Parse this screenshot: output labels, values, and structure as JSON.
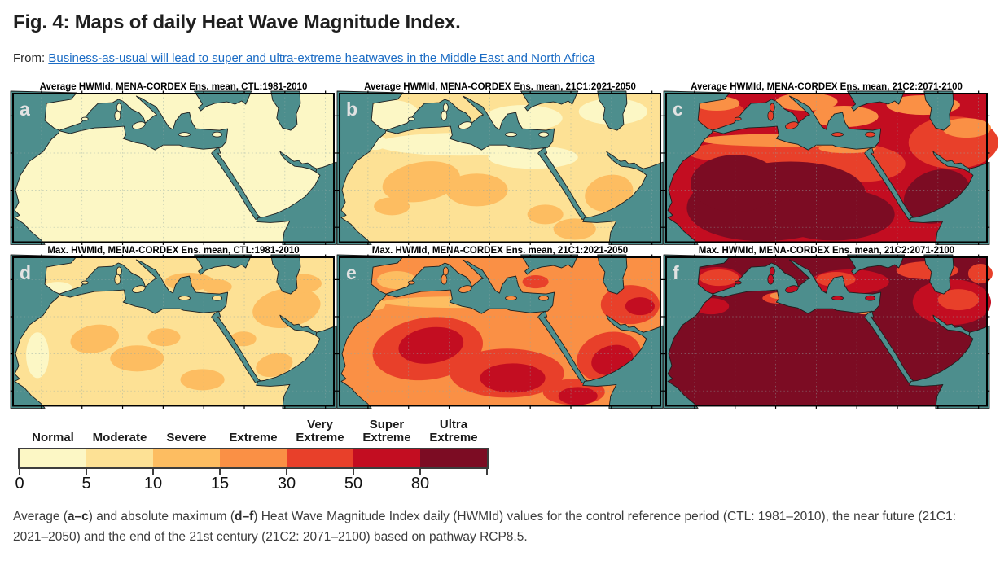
{
  "page": {
    "figure_title": "Fig. 4: Maps of daily Heat Wave Magnitude Index.",
    "from_label": "From: ",
    "source_link": "Business-as-usual will lead to super and ultra-extreme heatwaves in the Middle East and North Africa"
  },
  "colors": {
    "ocean": "#4d8e8d",
    "coastline": "#1e1e1e",
    "normal": "#fcf7c5",
    "moderate": "#fde195",
    "severe": "#fdbd61",
    "extreme": "#fa9045",
    "very_extreme": "#e8402a",
    "super_extreme": "#c30d21",
    "ultra_extreme": "#7c0c23",
    "link": "#1a6bc4",
    "panel_letter": "#e2e2e2"
  },
  "panels": [
    {
      "letter": "a",
      "title": "Average HWMId, MENA-CORDEX Ens. mean, CTL:1981-2010",
      "base": "normal",
      "islands": "normal",
      "patches": []
    },
    {
      "letter": "b",
      "title": "Average HWMId, MENA-CORDEX Ens. mean, 21C1:2021-2050",
      "base": "moderate",
      "islands": "normal",
      "patches": [
        [
          "normal",
          150,
          62,
          105,
          14,
          0
        ],
        [
          "normal",
          237,
          78,
          55,
          14,
          0
        ],
        [
          "normal",
          65,
          28,
          34,
          20,
          0
        ],
        [
          "normal",
          225,
          30,
          48,
          16,
          0
        ],
        [
          "normal",
          335,
          22,
          42,
          16,
          0
        ],
        [
          "normal",
          44,
          60,
          14,
          9,
          0
        ],
        [
          "severe",
          100,
          108,
          48,
          24,
          -10
        ],
        [
          "severe",
          168,
          118,
          38,
          20,
          0
        ],
        [
          "severe",
          330,
          122,
          30,
          22,
          -15
        ],
        [
          "severe",
          288,
          166,
          26,
          13,
          0
        ],
        [
          "severe",
          252,
          148,
          22,
          12,
          0
        ],
        [
          "severe",
          64,
          138,
          22,
          11,
          0
        ]
      ]
    },
    {
      "letter": "c",
      "title": "Average HWMId, MENA-CORDEX Ens. mean, 21C2:2071-2100",
      "base": "super_extreme",
      "islands": "very_extreme",
      "patches": [
        [
          "very_extreme",
          150,
          72,
          125,
          16,
          0
        ],
        [
          "very_extreme",
          243,
          86,
          50,
          22,
          0
        ],
        [
          "very_extreme",
          352,
          60,
          55,
          32,
          0
        ],
        [
          "very_extreme",
          65,
          28,
          34,
          20,
          0
        ],
        [
          "ultra_extreme",
          135,
          132,
          110,
          48,
          -5
        ],
        [
          "ultra_extreme",
          85,
          110,
          55,
          35,
          0
        ],
        [
          "ultra_extreme",
          205,
          148,
          75,
          32,
          0
        ],
        [
          "ultra_extreme",
          332,
          126,
          42,
          32,
          -20
        ],
        [
          "extreme",
          150,
          57,
          110,
          8,
          0
        ],
        [
          "extreme",
          222,
          67,
          35,
          6,
          0
        ],
        [
          "extreme",
          218,
          28,
          42,
          13,
          0
        ],
        [
          "extreme",
          172,
          10,
          38,
          11,
          0
        ],
        [
          "extreme",
          62,
          12,
          28,
          9,
          0
        ],
        [
          "extreme",
          315,
          14,
          45,
          12,
          0
        ],
        [
          "extreme",
          368,
          42,
          30,
          12,
          0
        ]
      ]
    },
    {
      "letter": "d",
      "title": "Max. HWMId, MENA-CORDEX Ens. mean, CTL:1981-2010",
      "base": "moderate",
      "islands": "moderate",
      "patches": [
        [
          "normal",
          30,
          120,
          14,
          28,
          0
        ],
        [
          "normal",
          55,
          38,
          18,
          8,
          0
        ],
        [
          "severe",
          100,
          100,
          30,
          17,
          -10
        ],
        [
          "severe",
          152,
          124,
          33,
          16,
          0
        ],
        [
          "severe",
          185,
          98,
          20,
          11,
          0
        ],
        [
          "severe",
          216,
          30,
          30,
          11,
          0
        ],
        [
          "severe",
          250,
          36,
          18,
          9,
          0
        ],
        [
          "severe",
          335,
          62,
          42,
          24,
          -10
        ],
        [
          "severe",
          352,
          32,
          26,
          12,
          0
        ],
        [
          "severe",
          320,
          132,
          23,
          14,
          -15
        ],
        [
          "severe",
          232,
          150,
          27,
          13,
          0
        ],
        [
          "severe",
          282,
          100,
          16,
          9,
          0
        ]
      ]
    },
    {
      "letter": "e",
      "title": "Max. HWMId, MENA-CORDEX Ens. mean, 21C1:2021-2050",
      "base": "extreme",
      "islands": "extreme",
      "patches": [
        [
          "severe",
          148,
          55,
          95,
          7,
          0
        ],
        [
          "severe",
          70,
          28,
          24,
          11,
          0
        ],
        [
          "severe",
          44,
          58,
          12,
          7,
          0
        ],
        [
          "very_extreme",
          108,
          112,
          68,
          38,
          -8
        ],
        [
          "very_extreme",
          205,
          142,
          70,
          30,
          0
        ],
        [
          "very_extreme",
          330,
          122,
          40,
          30,
          -15
        ],
        [
          "very_extreme",
          287,
          165,
          38,
          16,
          0
        ],
        [
          "very_extreme",
          356,
          58,
          36,
          24,
          0
        ],
        [
          "very_extreme",
          240,
          30,
          16,
          8,
          0
        ],
        [
          "super_extreme",
          112,
          108,
          40,
          22,
          -8
        ],
        [
          "super_extreme",
          212,
          148,
          40,
          18,
          0
        ],
        [
          "super_extreme",
          334,
          126,
          26,
          18,
          -15
        ],
        [
          "super_extreme",
          292,
          170,
          24,
          11,
          0
        ],
        [
          "super_extreme",
          368,
          60,
          18,
          11,
          0
        ]
      ]
    },
    {
      "letter": "f",
      "title": "Max. HWMId, MENA-CORDEX Ens. mean, 21C2:2071-2100",
      "base": "ultra_extreme",
      "islands": "super_extreme",
      "patches": [
        [
          "super_extreme",
          225,
          30,
          48,
          15,
          0
        ],
        [
          "super_extreme",
          350,
          55,
          48,
          28,
          0
        ],
        [
          "super_extreme",
          62,
          28,
          32,
          16,
          0
        ],
        [
          "super_extreme",
          55,
          60,
          22,
          10,
          0
        ],
        [
          "very_extreme",
          65,
          25,
          24,
          10,
          0
        ],
        [
          "very_extreme",
          208,
          27,
          24,
          9,
          0
        ],
        [
          "very_extreme",
          320,
          16,
          38,
          11,
          0
        ],
        [
          "very_extreme",
          358,
          52,
          25,
          13,
          0
        ],
        [
          "very_extreme",
          140,
          50,
          22,
          7,
          0
        ],
        [
          "very_extreme",
          385,
          20,
          15,
          12,
          0
        ],
        [
          "extreme",
          139,
          47,
          12,
          4,
          0
        ],
        [
          "extreme",
          243,
          66,
          10,
          4,
          0
        ]
      ]
    }
  ],
  "legend": {
    "categories": [
      {
        "label": "Normal",
        "color": "normal"
      },
      {
        "label": "Moderate",
        "color": "moderate"
      },
      {
        "label": "Severe",
        "color": "severe"
      },
      {
        "label": "Extreme",
        "color": "extreme"
      },
      {
        "label": "Very\nExtreme",
        "color": "very_extreme"
      },
      {
        "label": "Super\nExtreme",
        "color": "super_extreme"
      },
      {
        "label": "Ultra\nExtreme",
        "color": "ultra_extreme"
      }
    ],
    "tick_labels": [
      "0",
      "5",
      "10",
      "15",
      "30",
      "50",
      "80"
    ]
  },
  "caption": {
    "parts": [
      {
        "text": "Average (",
        "bold": false
      },
      {
        "text": "a–c",
        "bold": true
      },
      {
        "text": ") and absolute maximum (",
        "bold": false
      },
      {
        "text": "d–f",
        "bold": true
      },
      {
        "text": ") Heat Wave Magnitude Index daily (HWMId) values for the control reference period (CTL: 1981–2010), the near future (21C1: 2021–2050) and the end of the 21st century (21C2: 2071–2100) based on pathway RCP8.5.",
        "bold": false
      }
    ]
  },
  "chart_data": {
    "type": "heatmap",
    "title": "Maps of daily Heat Wave Magnitude Index (HWMId), MENA-CORDEX ensemble mean",
    "colorbar_categories": [
      "Normal",
      "Moderate",
      "Severe",
      "Extreme",
      "Very Extreme",
      "Super Extreme",
      "Ultra Extreme"
    ],
    "colorbar_thresholds": [
      0,
      5,
      10,
      15,
      30,
      50,
      80
    ],
    "colorbar_open_ended": true,
    "panels": [
      {
        "id": "a",
        "title": "Average HWMId, MENA-CORDEX Ens. mean, CTL:1981-2010",
        "dominant_category": "Normal"
      },
      {
        "id": "b",
        "title": "Average HWMId, MENA-CORDEX Ens. mean, 21C1:2021-2050",
        "dominant_category": "Moderate with Severe patches"
      },
      {
        "id": "c",
        "title": "Average HWMId, MENA-CORDEX Ens. mean, 21C2:2071-2100",
        "dominant_category": "Super/Ultra Extreme core, Extreme coasts"
      },
      {
        "id": "d",
        "title": "Max. HWMId, MENA-CORDEX Ens. mean, CTL:1981-2010",
        "dominant_category": "Moderate with Severe patches"
      },
      {
        "id": "e",
        "title": "Max. HWMId, MENA-CORDEX Ens. mean, 21C1:2021-2050",
        "dominant_category": "Extreme with Very/Super Extreme cores"
      },
      {
        "id": "f",
        "title": "Max. HWMId, MENA-CORDEX Ens. mean, 21C2:2071-2100",
        "dominant_category": "Ultra Extreme"
      }
    ]
  }
}
